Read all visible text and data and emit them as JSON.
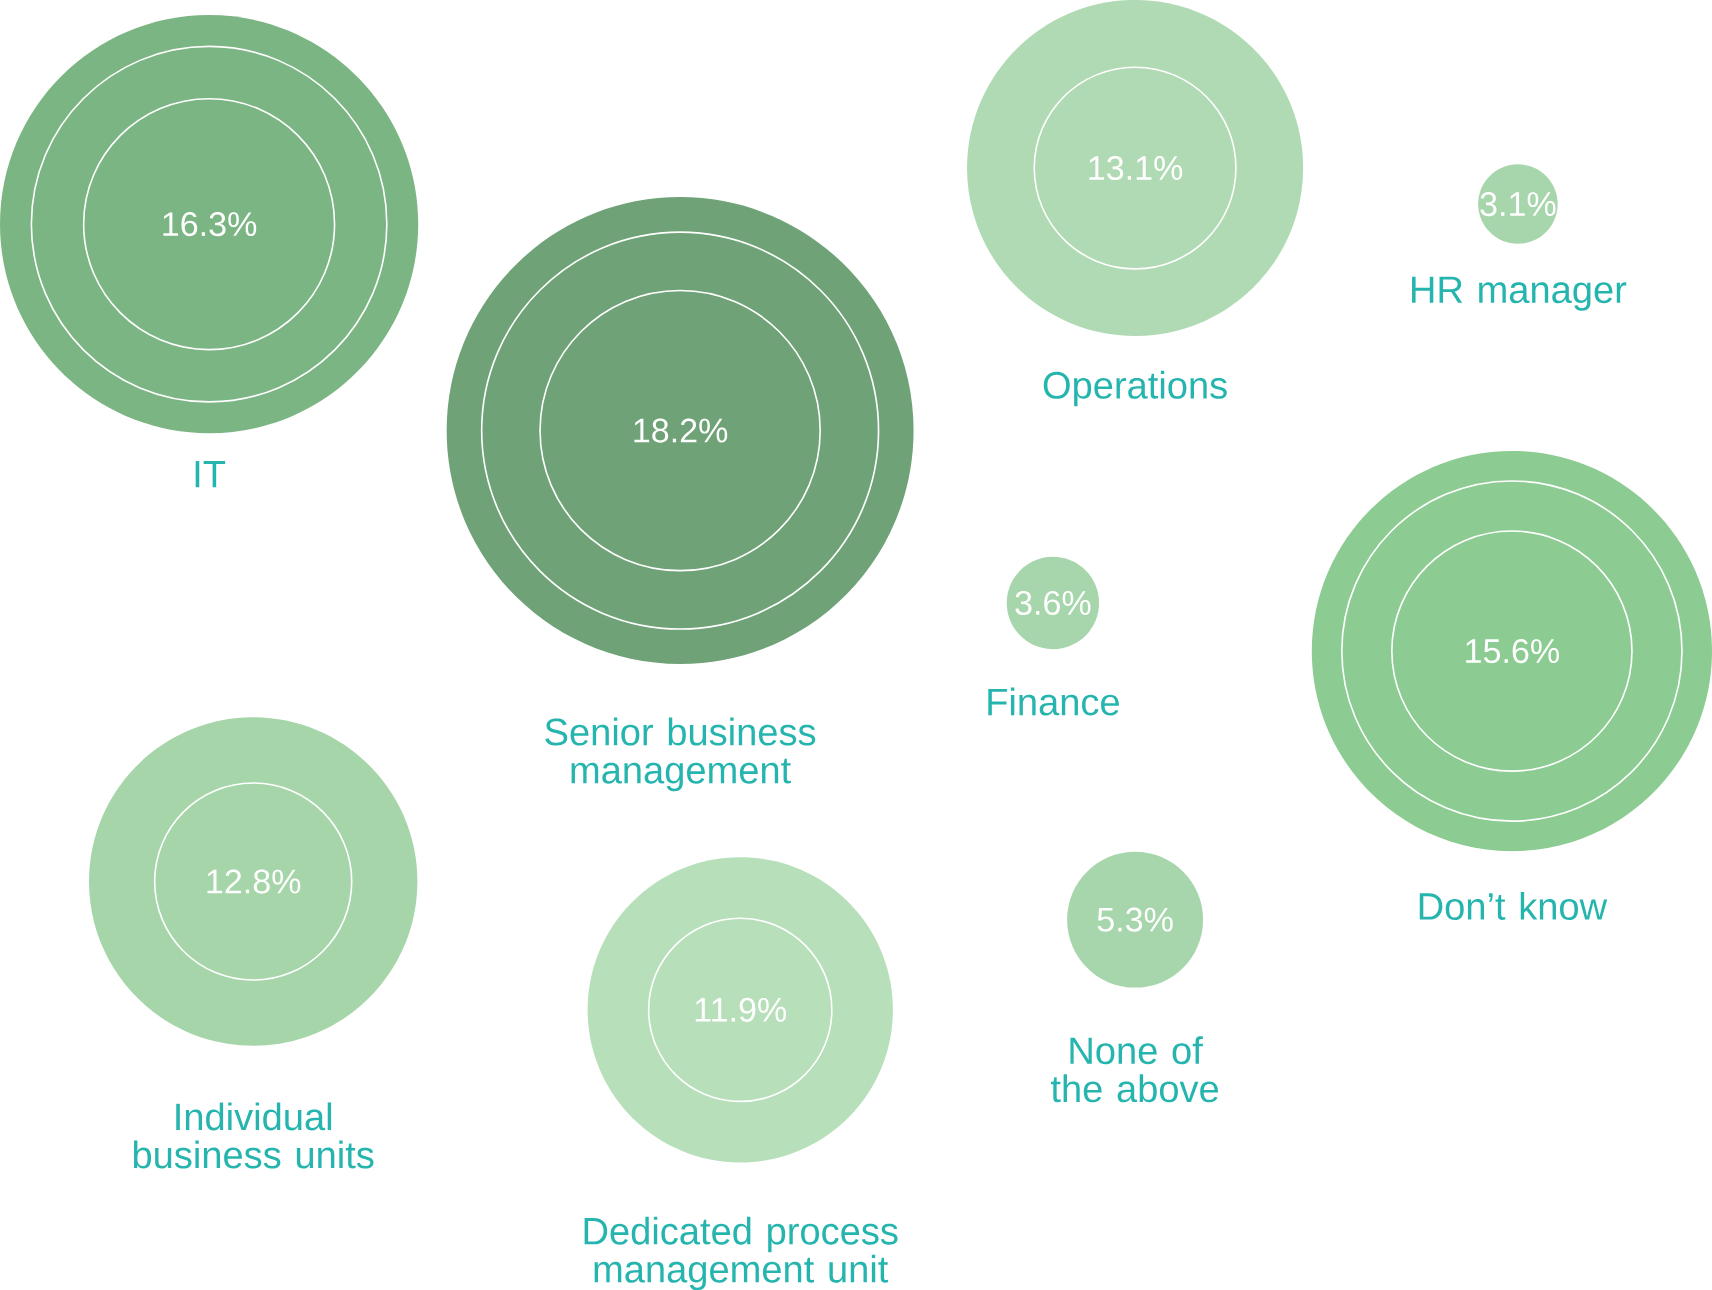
{
  "chart_data": {
    "type": "other",
    "categories": [
      "IT",
      "Senior business management",
      "Operations",
      "HR manager",
      "Finance",
      "Don’t know",
      "Individual business units",
      "Dedicated process management unit",
      "None of the above"
    ],
    "values": [
      16.3,
      18.2,
      13.1,
      3.1,
      3.6,
      15.6,
      12.8,
      11.9,
      5.3
    ],
    "value_labels": [
      "16.3%",
      "18.2%",
      "13.1%",
      "3.1%",
      "3.6%",
      "15.6%",
      "12.8%",
      "11.9%",
      "5.3%"
    ],
    "colors": [
      "#7bb583",
      "#6fa377",
      "#b0dab4",
      "#a8d6ac",
      "#a8d6ac",
      "#8ccc92",
      "#a6d5aa",
      "#b7dfba",
      "#a8d6ac"
    ]
  }
}
